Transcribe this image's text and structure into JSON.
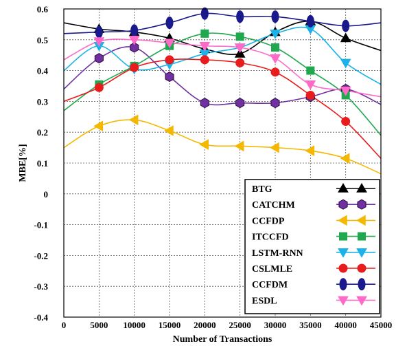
{
  "chart_data": {
    "type": "line",
    "title": "",
    "xlabel": "Number of Transactions",
    "ylabel": "MBE[%]",
    "xlim": [
      0,
      45000
    ],
    "ylim": [
      -0.4,
      0.6
    ],
    "x_ticks": [
      0,
      5000,
      10000,
      15000,
      20000,
      25000,
      30000,
      35000,
      40000,
      45000
    ],
    "x_tick_labels": [
      "0",
      "5000",
      "10000",
      "15000",
      "20000",
      "25000",
      "30000",
      "35000",
      "40000",
      "45000"
    ],
    "y_ticks": [
      0.6,
      0.5,
      0.4,
      0.3,
      0.2,
      0.1,
      0,
      -0.1,
      -0.2,
      -0.3,
      -0.4
    ],
    "y_tick_labels": [
      "0.6",
      "0.5",
      "0.4",
      "0.3",
      "0.2",
      "0.1",
      "0",
      "-0.1",
      "-0.2",
      "-0.3",
      "-0.4"
    ],
    "grid": "dotted",
    "legend_position": "bottom-right",
    "series": [
      {
        "name": "BTG",
        "color": "#000000",
        "marker": "triangle-up",
        "x": [
          0,
          5000,
          10000,
          15000,
          20000,
          25000,
          30000,
          35000,
          40000,
          45000
        ],
        "y": [
          0.555,
          0.535,
          0.525,
          0.505,
          0.47,
          0.455,
          0.525,
          0.56,
          0.505,
          0.465
        ]
      },
      {
        "name": "CATCHM",
        "color": "#7030a0",
        "marker": "hexagon",
        "x": [
          0,
          5000,
          10000,
          15000,
          20000,
          25000,
          30000,
          35000,
          40000,
          45000
        ],
        "y": [
          0.34,
          0.44,
          0.475,
          0.38,
          0.295,
          0.295,
          0.295,
          0.315,
          0.34,
          0.29
        ]
      },
      {
        "name": "CCFDP",
        "color": "#f5b800",
        "marker": "triangle-left",
        "x": [
          0,
          5000,
          10000,
          15000,
          20000,
          25000,
          30000,
          35000,
          40000,
          45000
        ],
        "y": [
          0.15,
          0.22,
          0.24,
          0.205,
          0.16,
          0.155,
          0.15,
          0.14,
          0.115,
          0.065
        ]
      },
      {
        "name": "ITCCFD",
        "color": "#1fa84d",
        "marker": "square",
        "x": [
          0,
          5000,
          10000,
          15000,
          20000,
          25000,
          30000,
          35000,
          40000,
          45000
        ],
        "y": [
          0.27,
          0.355,
          0.415,
          0.48,
          0.52,
          0.51,
          0.475,
          0.4,
          0.32,
          0.19
        ]
      },
      {
        "name": "LSTM-RNN",
        "color": "#1ab2e8",
        "marker": "triangle-down",
        "x": [
          0,
          5000,
          10000,
          15000,
          20000,
          25000,
          30000,
          35000,
          40000,
          45000
        ],
        "y": [
          0.4,
          0.48,
          0.405,
          0.42,
          0.455,
          0.475,
          0.52,
          0.535,
          0.425,
          0.355
        ]
      },
      {
        "name": "CSLMLE",
        "color": "#e81c1c",
        "marker": "circle",
        "x": [
          0,
          5000,
          10000,
          15000,
          20000,
          25000,
          30000,
          35000,
          40000,
          45000
        ],
        "y": [
          0.3,
          0.345,
          0.41,
          0.435,
          0.435,
          0.425,
          0.395,
          0.32,
          0.235,
          0.115
        ]
      },
      {
        "name": "CCFDM",
        "color": "#1a1a8c",
        "marker": "ellipse",
        "x": [
          0,
          5000,
          10000,
          15000,
          20000,
          25000,
          30000,
          35000,
          40000,
          45000
        ],
        "y": [
          0.52,
          0.525,
          0.53,
          0.555,
          0.585,
          0.575,
          0.575,
          0.56,
          0.545,
          0.555
        ]
      },
      {
        "name": "ESDL",
        "color": "#ff69c8",
        "marker": "triangle-down",
        "x": [
          0,
          5000,
          10000,
          15000,
          20000,
          25000,
          30000,
          35000,
          40000,
          45000
        ],
        "y": [
          0.435,
          0.495,
          0.5,
          0.49,
          0.48,
          0.475,
          0.44,
          0.355,
          0.335,
          0.315
        ]
      }
    ]
  }
}
